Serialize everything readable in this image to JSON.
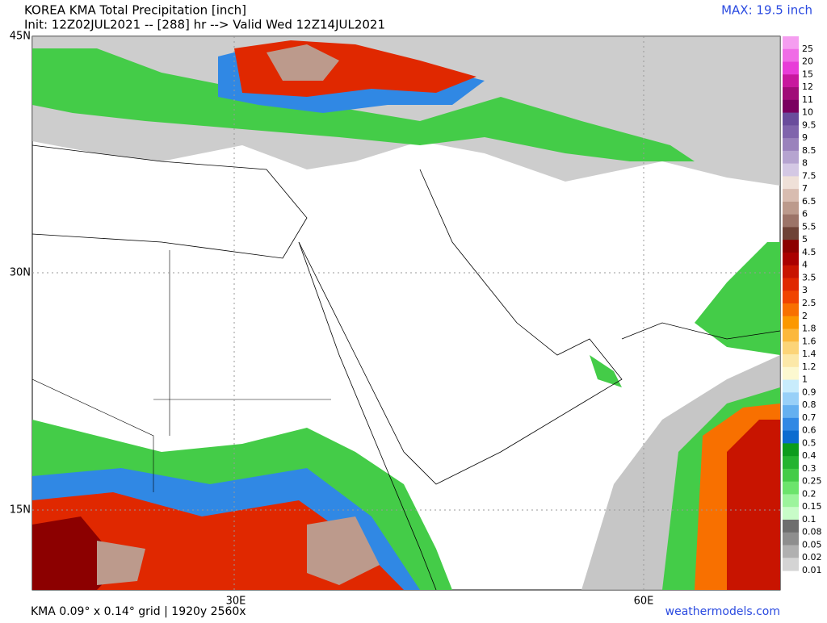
{
  "header": {
    "title": "KOREA KMA Total Precipitation [inch]",
    "subtitle": "Init: 12Z02JUL2021 -- [288] hr --> Valid Wed 12Z14JUL2021",
    "max": "MAX: 19.5 inch"
  },
  "map": {
    "lat_labels": [
      "45N",
      "30N",
      "15N"
    ],
    "lon_labels": [
      "30E",
      "60E"
    ]
  },
  "legend": {
    "entries": [
      {
        "label": "25",
        "color": "#f59ef0"
      },
      {
        "label": "20",
        "color": "#f06ce6"
      },
      {
        "label": "15",
        "color": "#e83cd8"
      },
      {
        "label": "12",
        "color": "#c8189e"
      },
      {
        "label": "11",
        "color": "#a00c78"
      },
      {
        "label": "10",
        "color": "#7a0060"
      },
      {
        "label": "9.5",
        "color": "#6a4c9c"
      },
      {
        "label": "9",
        "color": "#8064ac"
      },
      {
        "label": "8.5",
        "color": "#9a82bc"
      },
      {
        "label": "8",
        "color": "#b6a4d0"
      },
      {
        "label": "7.5",
        "color": "#d4c8e4"
      },
      {
        "label": "7",
        "color": "#efe0d8"
      },
      {
        "label": "6.5",
        "color": "#d8bcb0"
      },
      {
        "label": "6",
        "color": "#bc9a8c"
      },
      {
        "label": "5.5",
        "color": "#9c7468"
      },
      {
        "label": "5",
        "color": "#6e4236"
      },
      {
        "label": "4.5",
        "color": "#8c0000"
      },
      {
        "label": "4",
        "color": "#aa0000"
      },
      {
        "label": "3.5",
        "color": "#c81400"
      },
      {
        "label": "3",
        "color": "#e02800"
      },
      {
        "label": "2.5",
        "color": "#f04400"
      },
      {
        "label": "2",
        "color": "#f87000"
      },
      {
        "label": "1.8",
        "color": "#fc9800"
      },
      {
        "label": "1.6",
        "color": "#fcb83c"
      },
      {
        "label": "1.4",
        "color": "#fcd478"
      },
      {
        "label": "1.2",
        "color": "#fce8a8"
      },
      {
        "label": "1",
        "color": "#fcf8d0"
      },
      {
        "label": "0.9",
        "color": "#c8ecfc"
      },
      {
        "label": "0.8",
        "color": "#98d0f8"
      },
      {
        "label": "0.7",
        "color": "#64b0f0"
      },
      {
        "label": "0.6",
        "color": "#3088e4"
      },
      {
        "label": "0.5",
        "color": "#0c6cd0"
      },
      {
        "label": "0.4",
        "color": "#0c9c1c"
      },
      {
        "label": "0.3",
        "color": "#24b430"
      },
      {
        "label": "0.25",
        "color": "#44cc48"
      },
      {
        "label": "0.2",
        "color": "#6ce46c"
      },
      {
        "label": "0.15",
        "color": "#9cf49c"
      },
      {
        "label": "0.1",
        "color": "#c8fcc8"
      },
      {
        "label": "0.08",
        "color": "#6e6e6e"
      },
      {
        "label": "0.05",
        "color": "#8e8e8e"
      },
      {
        "label": "0.02",
        "color": "#b0b0b0"
      },
      {
        "label": "0.01",
        "color": "#d4d4d4"
      }
    ]
  },
  "footer": {
    "grid": "KMA 0.09° x 0.14° grid | 1920y 2560x",
    "site": "weathermodels.com"
  }
}
